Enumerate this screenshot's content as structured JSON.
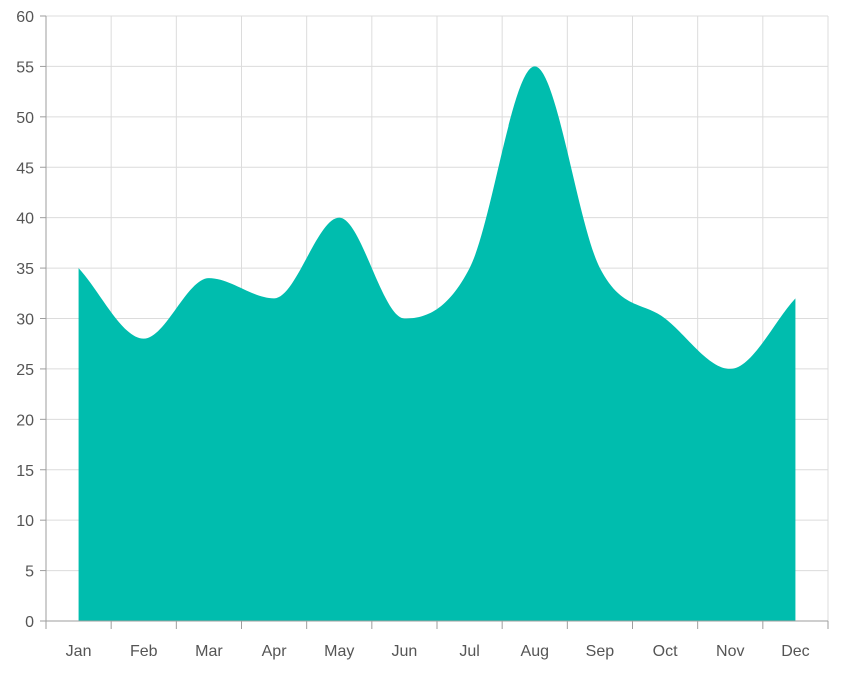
{
  "chart_data": {
    "type": "area",
    "title": "",
    "xlabel": "",
    "ylabel": "",
    "categories": [
      "Jan",
      "Feb",
      "Mar",
      "Apr",
      "May",
      "Jun",
      "Jul",
      "Aug",
      "Sep",
      "Oct",
      "Nov",
      "Dec"
    ],
    "series": [
      {
        "values": [
          35,
          28,
          34,
          32,
          40,
          30,
          35,
          55,
          35,
          30,
          25,
          32
        ],
        "color": "#00bdae"
      }
    ],
    "ylim": [
      0,
      60
    ],
    "yticks": [
      "0",
      "5",
      "10",
      "15",
      "20",
      "25",
      "30",
      "35",
      "40",
      "45",
      "50",
      "55",
      "60"
    ],
    "grid": true,
    "curve": "smooth"
  }
}
